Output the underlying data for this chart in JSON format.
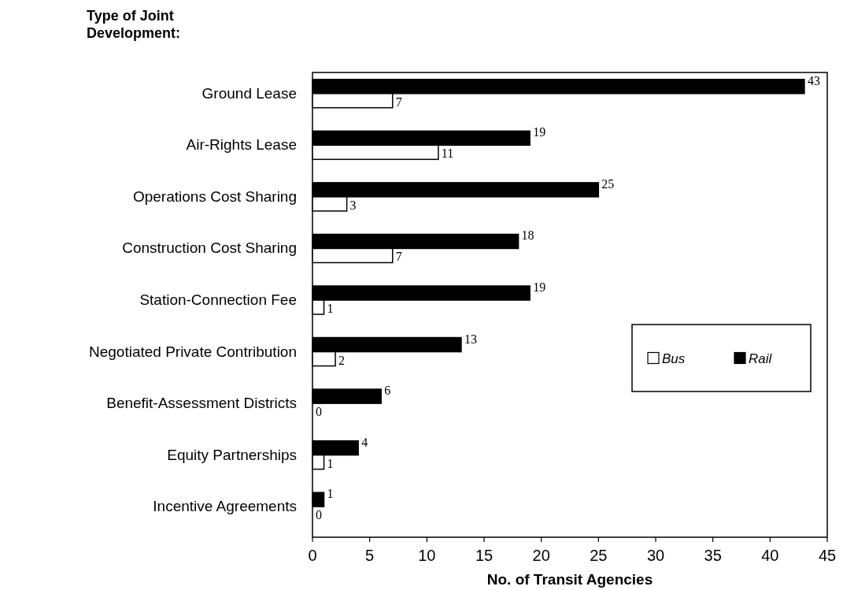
{
  "chart_data": {
    "type": "bar",
    "orientation": "horizontal",
    "title": "Type of Joint Development:",
    "xlabel": "No. of Transit Agencies",
    "categories": [
      "Ground Lease",
      "Air-Rights Lease",
      "Operations Cost Sharing",
      "Construction Cost Sharing",
      "Station-Connection Fee",
      "Negotiated Private Contribution",
      "Benefit-Assessment Districts",
      "Equity Partnerships",
      "Incentive Agreements"
    ],
    "series": [
      {
        "name": "Bus",
        "color": "#ffffff",
        "values": [
          7,
          11,
          3,
          7,
          1,
          2,
          0,
          1,
          0
        ]
      },
      {
        "name": "Rail",
        "color": "#000000",
        "values": [
          43,
          19,
          25,
          18,
          19,
          13,
          6,
          4,
          1
        ]
      }
    ],
    "xlim": [
      0,
      45
    ],
    "xticks": [
      0,
      5,
      10,
      15,
      20,
      25,
      30,
      35,
      40,
      45
    ],
    "data_labels": true,
    "legend": "bottom right",
    "grid": false
  }
}
